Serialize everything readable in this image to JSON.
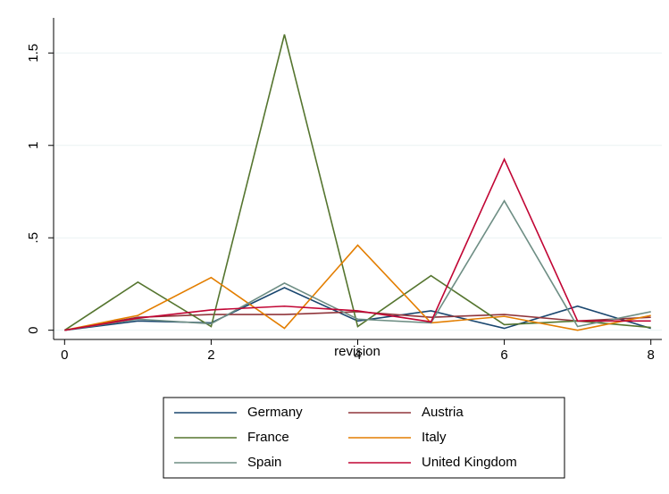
{
  "chart_data": {
    "type": "line",
    "x_label": "revision",
    "x": [
      0,
      1,
      2,
      3,
      4,
      5,
      6,
      7,
      8
    ],
    "xlim": [
      -0.15,
      8.15
    ],
    "xticks": [
      0,
      2,
      4,
      6,
      8
    ],
    "ylim": [
      -0.05,
      1.69
    ],
    "yticks": [
      0,
      {
        "value": 0.5,
        "label": ".5"
      },
      1,
      1.5
    ],
    "grid": true,
    "legend": "bottom",
    "series": [
      {
        "name": "Germany",
        "color": "#1a476f",
        "values": [
          0,
          0.05,
          0.04,
          0.23,
          0.05,
          0.105,
          0.01,
          0.13,
          0.01
        ]
      },
      {
        "name": "Austria",
        "color": "#90353b",
        "values": [
          0,
          0.07,
          0.085,
          0.085,
          0.1,
          0.07,
          0.085,
          0.05,
          0.07
        ]
      },
      {
        "name": "France",
        "color": "#55752f",
        "values": [
          0,
          0.26,
          0.02,
          1.6,
          0.02,
          0.295,
          0.03,
          0.05,
          0.015
        ]
      },
      {
        "name": "Italy",
        "color": "#e37e00",
        "values": [
          0,
          0.08,
          0.285,
          0.01,
          0.46,
          0.04,
          0.075,
          0,
          0.08
        ]
      },
      {
        "name": "Spain",
        "color": "#6e8e84",
        "values": [
          0,
          0.06,
          0.035,
          0.255,
          0.06,
          0.04,
          0.7,
          0.02,
          0.1
        ]
      },
      {
        "name": "United Kingdom",
        "color": "#c10534",
        "values": [
          0,
          0.065,
          0.11,
          0.13,
          0.105,
          0.045,
          0.925,
          0.05,
          0.05
        ]
      }
    ]
  }
}
